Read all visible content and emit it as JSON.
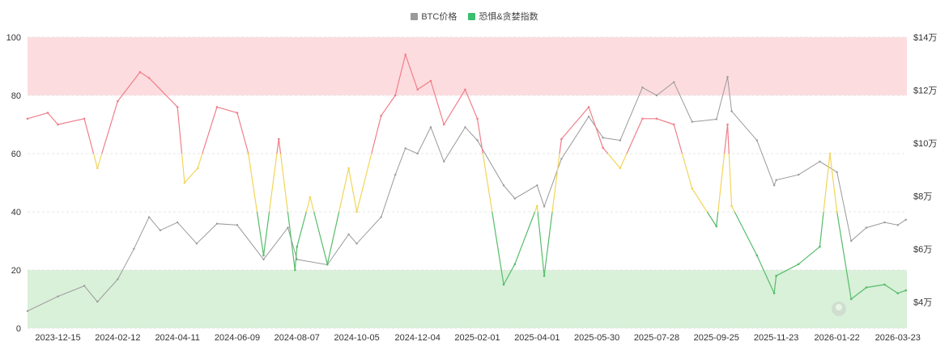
{
  "chart_data": {
    "type": "line",
    "title": "",
    "legend": [
      {
        "name": "BTC价格",
        "color": "#9a9a9a"
      },
      {
        "name": "恐惧&贪婪指数",
        "color": "#3bbf6e"
      }
    ],
    "legend_position": "top-center",
    "x_tick_labels": [
      "2023-12-15",
      "2024-02-12",
      "2024-04-11",
      "2024-06-09",
      "2024-08-07",
      "2024-10-05",
      "2024-12-04",
      "2025-02-01",
      "2025-04-01",
      "2025-05-30",
      "2025-07-28",
      "2025-09-25",
      "2025-11-23",
      "2026-01-22",
      "2026-03-23"
    ],
    "x_range": [
      "2023-11-15",
      "2026-04-01"
    ],
    "y_left": {
      "min": 0,
      "max": 100,
      "ticks": [
        0,
        20,
        40,
        60,
        80,
        100
      ],
      "labels": [
        "0",
        "20",
        "40",
        "60",
        "80",
        "100"
      ]
    },
    "y_right": {
      "min": 30000,
      "max": 140000,
      "ticks": [
        40000,
        60000,
        80000,
        100000,
        120000,
        140000
      ],
      "labels": [
        "$4万",
        "$6万",
        "$8万",
        "$10万",
        "$12万",
        "$14万"
      ]
    },
    "bands": [
      {
        "from": 80,
        "to": 100,
        "color": "#fddcdf"
      },
      {
        "from": 0,
        "to": 20,
        "color": "#d9f0d9"
      }
    ],
    "zone_colors": {
      "greed": "#ef7f8a",
      "neutral": "#f2d558",
      "fear": "#56bd6b"
    },
    "series": [
      {
        "name": "BTC价格",
        "axis": "right",
        "color": "#9a9a9a",
        "points": [
          [
            "2023-11-15",
            36500
          ],
          [
            "2023-12-15",
            42000
          ],
          [
            "2024-01-10",
            46000
          ],
          [
            "2024-01-23",
            40000
          ],
          [
            "2024-02-12",
            48500
          ],
          [
            "2024-02-28",
            60000
          ],
          [
            "2024-03-14",
            72000
          ],
          [
            "2024-03-25",
            67000
          ],
          [
            "2024-04-11",
            70000
          ],
          [
            "2024-04-30",
            62000
          ],
          [
            "2024-05-20",
            69500
          ],
          [
            "2024-06-09",
            69000
          ],
          [
            "2024-07-05",
            56000
          ],
          [
            "2024-07-29",
            68000
          ],
          [
            "2024-08-07",
            56000
          ],
          [
            "2024-09-06",
            54000
          ],
          [
            "2024-09-27",
            65500
          ],
          [
            "2024-10-05",
            62000
          ],
          [
            "2024-10-29",
            72000
          ],
          [
            "2024-11-12",
            88000
          ],
          [
            "2024-11-22",
            98000
          ],
          [
            "2024-12-04",
            96000
          ],
          [
            "2024-12-17",
            106000
          ],
          [
            "2024-12-30",
            93000
          ],
          [
            "2025-01-20",
            106000
          ],
          [
            "2025-02-01",
            101000
          ],
          [
            "2025-02-27",
            84000
          ],
          [
            "2025-03-10",
            79000
          ],
          [
            "2025-04-01",
            84000
          ],
          [
            "2025-04-08",
            76000
          ],
          [
            "2025-04-25",
            94000
          ],
          [
            "2025-05-22",
            110000
          ],
          [
            "2025-06-05",
            102000
          ],
          [
            "2025-06-22",
            101000
          ],
          [
            "2025-07-14",
            121000
          ],
          [
            "2025-07-28",
            118000
          ],
          [
            "2025-08-14",
            123000
          ],
          [
            "2025-09-01",
            108000
          ],
          [
            "2025-09-25",
            109000
          ],
          [
            "2025-10-06",
            125000
          ],
          [
            "2025-10-10",
            112000
          ],
          [
            "2025-11-04",
            101000
          ],
          [
            "2025-11-21",
            84000
          ],
          [
            "2025-11-23",
            86000
          ],
          [
            "2025-12-15",
            88000
          ],
          [
            "2026-01-05",
            93000
          ],
          [
            "2026-01-22",
            89000
          ],
          [
            "2026-02-05",
            63000
          ],
          [
            "2026-02-20",
            68000
          ],
          [
            "2026-03-10",
            70000
          ],
          [
            "2026-03-23",
            69000
          ],
          [
            "2026-03-31",
            71000
          ]
        ]
      },
      {
        "name": "恐惧&贪婪指数",
        "axis": "left",
        "color": "#3bbf6e",
        "points": [
          [
            "2023-11-15",
            72
          ],
          [
            "2023-12-05",
            74
          ],
          [
            "2023-12-15",
            70
          ],
          [
            "2024-01-10",
            72
          ],
          [
            "2024-01-23",
            55
          ],
          [
            "2024-02-12",
            78
          ],
          [
            "2024-03-05",
            88
          ],
          [
            "2024-03-14",
            86
          ],
          [
            "2024-04-11",
            76
          ],
          [
            "2024-04-18",
            50
          ],
          [
            "2024-05-01",
            55
          ],
          [
            "2024-05-20",
            76
          ],
          [
            "2024-06-09",
            74
          ],
          [
            "2024-06-20",
            60
          ],
          [
            "2024-07-05",
            25
          ],
          [
            "2024-07-20",
            65
          ],
          [
            "2024-08-05",
            20
          ],
          [
            "2024-08-07",
            28
          ],
          [
            "2024-08-20",
            45
          ],
          [
            "2024-09-06",
            22
          ],
          [
            "2024-09-27",
            55
          ],
          [
            "2024-10-05",
            40
          ],
          [
            "2024-10-29",
            73
          ],
          [
            "2024-11-12",
            80
          ],
          [
            "2024-11-22",
            94
          ],
          [
            "2024-12-04",
            82
          ],
          [
            "2024-12-17",
            85
          ],
          [
            "2024-12-30",
            70
          ],
          [
            "2025-01-20",
            82
          ],
          [
            "2025-02-01",
            72
          ],
          [
            "2025-02-27",
            15
          ],
          [
            "2025-03-10",
            22
          ],
          [
            "2025-04-01",
            42
          ],
          [
            "2025-04-08",
            18
          ],
          [
            "2025-04-25",
            65
          ],
          [
            "2025-05-22",
            76
          ],
          [
            "2025-06-05",
            62
          ],
          [
            "2025-06-22",
            55
          ],
          [
            "2025-07-14",
            72
          ],
          [
            "2025-07-28",
            72
          ],
          [
            "2025-08-14",
            70
          ],
          [
            "2025-09-01",
            48
          ],
          [
            "2025-09-25",
            35
          ],
          [
            "2025-10-06",
            70
          ],
          [
            "2025-10-10",
            42
          ],
          [
            "2025-11-04",
            25
          ],
          [
            "2025-11-21",
            12
          ],
          [
            "2025-11-23",
            18
          ],
          [
            "2025-12-15",
            22
          ],
          [
            "2026-01-05",
            28
          ],
          [
            "2026-01-15",
            60
          ],
          [
            "2026-01-22",
            40
          ],
          [
            "2026-02-05",
            10
          ],
          [
            "2026-02-20",
            14
          ],
          [
            "2026-03-10",
            15
          ],
          [
            "2026-03-23",
            12
          ],
          [
            "2026-03-31",
            13
          ]
        ]
      }
    ]
  }
}
